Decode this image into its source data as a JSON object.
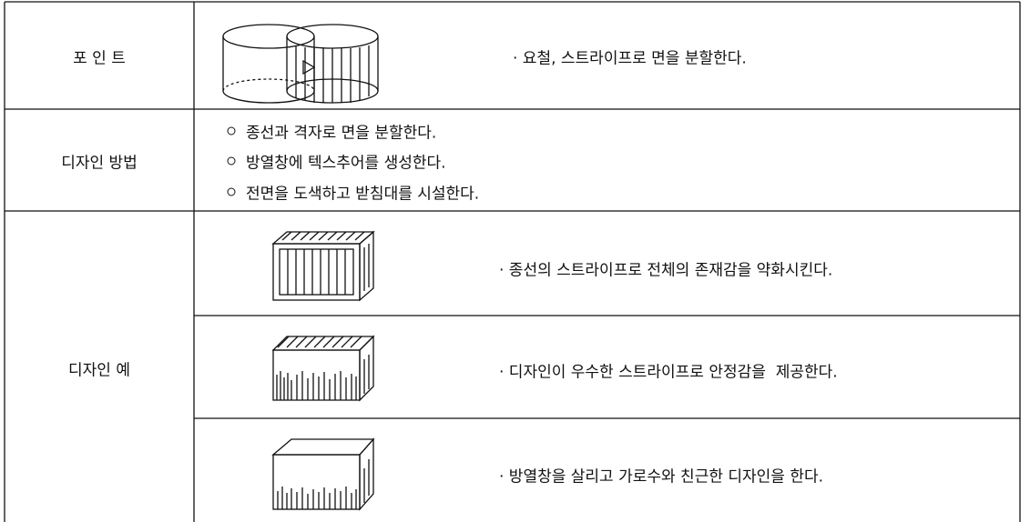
{
  "table": {
    "rows": [
      {
        "header": "포 인 트",
        "text": "· 요철, 스트라이프로 면을 분할한다."
      },
      {
        "header": "디자인 방법",
        "items": [
          "종선과 격자로 면을 분할한다.",
          "방열창에 텍스추어를 생성한다.",
          "전면을 도색하고 받침대를 시설한다."
        ]
      },
      {
        "header": "디자인 예",
        "examples": [
          "· 종선의 스트라이프로 전체의 존재감을 약화시킨다.",
          "· 디자인이 우수한 스트라이프로 안정감을  제공한다.",
          "· 방열창을 살리고 가로수와 친근한 디자인을 한다."
        ]
      }
    ]
  }
}
